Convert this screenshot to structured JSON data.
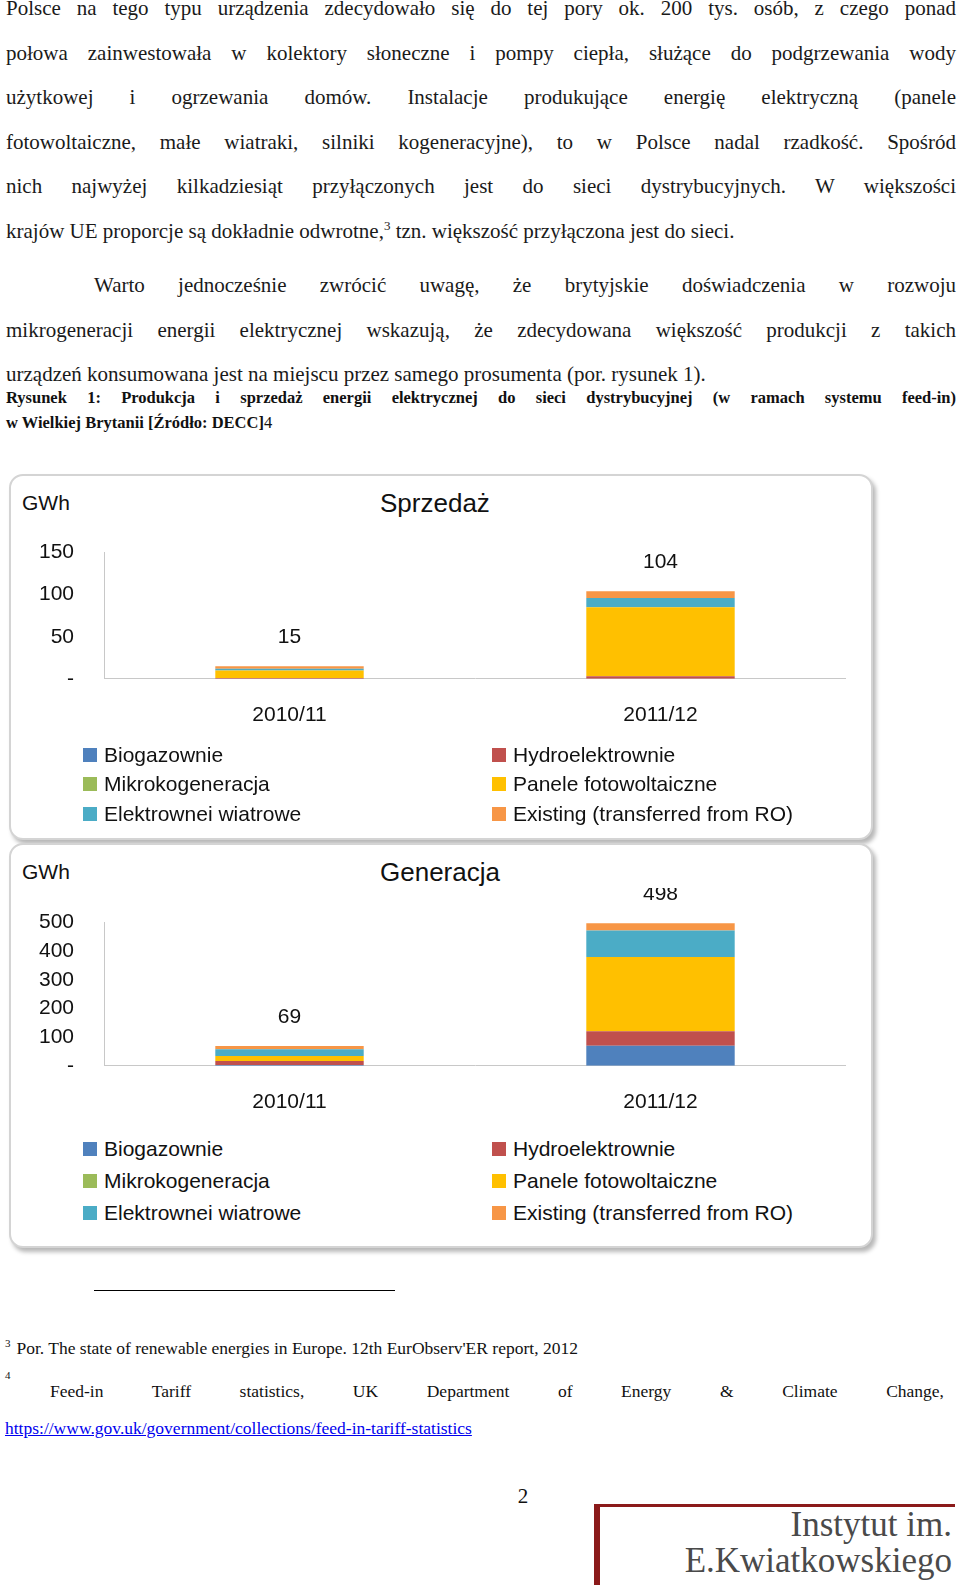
{
  "paragraphs": [
    {
      "lines": [
        "Polsce na tego typu urządzenia zdecydowało się do tej pory ok. 200 tys. osób, z czego ponad",
        "połowa zainwestowała w kolektory słoneczne i pompy ciepła, służące do podgrzewania wody",
        "użytkowej i ogrzewania domów. Instalacje produkujące energię elektryczną (panele",
        "fotowoltaiczne, małe wiatraki, silniki kogeneracyjne), to w Polsce nadal rzadkość. Spośród",
        "nich najwyżej kilkadziesiąt przyłączonych jest do sieci dystrybucyjnych. W większości",
        {
          "before": "krajów UE proporcje są dokładnie odwrotne,",
          "sup": "3",
          "after": " tzn. większość przyłączona jest do sieci."
        }
      ]
    },
    {
      "lines": [
        "Warto jednocześnie zwrócić uwagę, że brytyjskie doświadczenia w rozwoju",
        "mikrogeneracji energii elektrycznej wskazują, że zdecydowana większość produkcji z takich",
        "urządzeń konsumowana jest na miejscu przez samego prosumenta (por. rysunek 1)."
      ]
    }
  ],
  "caption": {
    "lines": [
      "Rysunek 1: Produkcja i sprzedaż energii elektrycznej do sieci dystrybucyjnej (w ramach systemu feed-in)",
      "w Wielkiej Brytanii [Źródło: DECC]"
    ],
    "note": "4"
  },
  "chart_data": [
    {
      "type": "bar",
      "title": "Sprzedaż",
      "y_label": "GWh",
      "stacked": true,
      "grid": false,
      "legend": "bottom",
      "categories": [
        "2010/11",
        "2011/12"
      ],
      "series": [
        {
          "name": "Biogazownie",
          "color": "#4f81bd",
          "values": [
            0,
            0
          ]
        },
        {
          "name": "Hydroelektrownie",
          "color": "#c0504d",
          "values": [
            1,
            3
          ]
        },
        {
          "name": "Mikrokogeneracja",
          "color": "#9bbb59",
          "values": [
            0,
            0
          ]
        },
        {
          "name": "Panele fotowoltaiczne",
          "color": "#ffc000",
          "values": [
            9,
            82
          ]
        },
        {
          "name": "Elektrownei wiatrowe",
          "color": "#4bacc6",
          "values": [
            2,
            11
          ]
        },
        {
          "name": "Existing (transferred from RO)",
          "color": "#f79646",
          "values": [
            3,
            8
          ]
        }
      ],
      "totals": [
        15,
        104
      ],
      "ylim": [
        0,
        150
      ],
      "yticks": [
        {
          "value": 0,
          "label": "-"
        },
        50,
        100,
        150
      ]
    },
    {
      "type": "bar",
      "title": "Generacja",
      "y_label": "GWh",
      "stacked": true,
      "grid": false,
      "legend": "bottom",
      "categories": [
        "2010/11",
        "2011/12"
      ],
      "series": [
        {
          "name": "Biogazownie",
          "color": "#4f81bd",
          "values": [
            3,
            70
          ]
        },
        {
          "name": "Hydroelektrownie",
          "color": "#c0504d",
          "values": [
            14,
            51
          ]
        },
        {
          "name": "Mikrokogeneracja",
          "color": "#9bbb59",
          "values": [
            0,
            0
          ]
        },
        {
          "name": "Panele fotowoltaiczne",
          "color": "#ffc000",
          "values": [
            17,
            259
          ]
        },
        {
          "name": "Elektrownei wiatrowe",
          "color": "#4bacc6",
          "values": [
            24,
            92
          ]
        },
        {
          "name": "Existing (transferred from RO)",
          "color": "#f79646",
          "values": [
            11,
            26
          ]
        }
      ],
      "totals": [
        69,
        498
      ],
      "ylim": [
        0,
        500
      ],
      "yticks": [
        {
          "value": 0,
          "label": "-"
        },
        100,
        200,
        300,
        400,
        500
      ]
    }
  ],
  "footnotes": [
    {
      "mark": "3",
      "text": "Por. The state of renewable energies in Europe. 12th EurObserv'ER report, 2012"
    },
    {
      "mark": "4",
      "text": "Feed-in Tariff statistics, UK Department of Energy & Climate Change,",
      "link": "https://www.gov.uk/government/collections/feed-in-tariff-statistics"
    }
  ],
  "page_number": "2",
  "logo": {
    "lines": [
      "Instytut im.",
      "E.Kwiatkowskiego"
    ]
  }
}
